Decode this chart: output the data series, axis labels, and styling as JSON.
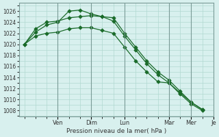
{
  "background_color": "#d8f0ee",
  "grid_color": "#b0d8d0",
  "line_color": "#1a6b2a",
  "ylim": [
    1007,
    1027.5
  ],
  "yticks": [
    1008,
    1010,
    1012,
    1014,
    1016,
    1018,
    1020,
    1022,
    1024,
    1026
  ],
  "xlabel": "Pression niveau de la mer( hPa )",
  "series": [
    [
      1020.0,
      1022.2,
      1023.5,
      1024.0,
      1026.0,
      1026.2,
      1025.5,
      1025.0,
      1024.2,
      1021.5,
      1019.0,
      1016.5,
      1014.5,
      1013.0,
      1011.0,
      1009.2,
      1008.0
    ],
    [
      1020.0,
      1022.8,
      1024.0,
      1024.2,
      1024.8,
      1025.0,
      1025.2,
      1025.0,
      1024.8,
      1022.0,
      1019.5,
      1017.0,
      1015.0,
      1013.5,
      1011.5,
      1009.5,
      1008.2
    ],
    [
      1020.0,
      1021.5,
      1022.0,
      1022.2,
      1022.8,
      1023.0,
      1023.0,
      1022.5,
      1022.0,
      1019.5,
      1017.0,
      1015.0,
      1013.2,
      1013.0,
      1011.2,
      1009.5,
      1008.2
    ]
  ],
  "n_points": 17,
  "x_tick_labels_positions": [
    3,
    6,
    9,
    13,
    15,
    17
  ],
  "x_tick_labels": [
    "Ven",
    "Dim",
    "Lun",
    "Mar",
    "Mer",
    "Je"
  ],
  "vline_positions": [
    3,
    6,
    9,
    13,
    15
  ]
}
